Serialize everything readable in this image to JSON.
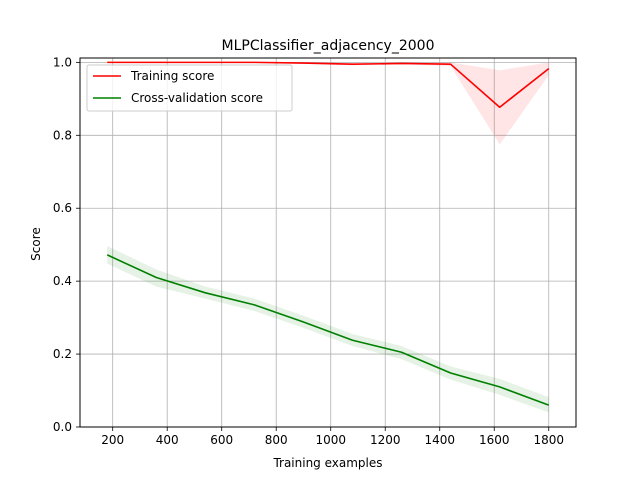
{
  "chart_data": {
    "type": "line",
    "title": "MLPClassifier_adjacency_2000",
    "xlabel": "Training examples",
    "ylabel": "Score",
    "xlim": [
      80,
      1900
    ],
    "ylim": [
      0.0,
      1.0
    ],
    "grid": true,
    "legend_position": "top-left",
    "x_ticks": [
      {
        "value": 200,
        "label": "200"
      },
      {
        "value": 400,
        "label": "400"
      },
      {
        "value": 600,
        "label": "600"
      },
      {
        "value": 800,
        "label": "800"
      },
      {
        "value": 1000,
        "label": "1000"
      },
      {
        "value": 1200,
        "label": "1200"
      },
      {
        "value": 1400,
        "label": "1400"
      },
      {
        "value": 1600,
        "label": "1600"
      },
      {
        "value": 1800,
        "label": "1800"
      }
    ],
    "y_ticks": [
      {
        "value": 0.0,
        "label": "0.0"
      },
      {
        "value": 0.2,
        "label": "0.2"
      },
      {
        "value": 0.4,
        "label": "0.4"
      },
      {
        "value": 0.6,
        "label": "0.6"
      },
      {
        "value": 0.8,
        "label": "0.8"
      },
      {
        "value": 1.0,
        "label": "1.0"
      }
    ],
    "x": [
      180,
      360,
      540,
      720,
      900,
      1080,
      1260,
      1440,
      1620,
      1800
    ],
    "series": [
      {
        "name": "Training score",
        "color": "#ff0000",
        "band_color": "#ff0000",
        "values": [
          1.0,
          1.0,
          1.0,
          1.0,
          0.998,
          0.995,
          0.997,
          0.995,
          0.877,
          0.983
        ],
        "band_lower": [
          1.0,
          1.0,
          1.0,
          1.0,
          0.996,
          0.992,
          0.995,
          0.99,
          0.775,
          0.965
        ],
        "band_upper": [
          1.0,
          1.0,
          1.0,
          1.0,
          1.0,
          0.998,
          0.999,
          1.0,
          0.978,
          1.0
        ]
      },
      {
        "name": "Cross-validation score",
        "color": "#008000",
        "band_color": "#008000",
        "values": [
          0.472,
          0.41,
          0.368,
          0.335,
          0.288,
          0.238,
          0.205,
          0.148,
          0.11,
          0.06
        ],
        "band_lower": [
          0.448,
          0.385,
          0.352,
          0.318,
          0.272,
          0.222,
          0.186,
          0.13,
          0.088,
          0.04
        ],
        "band_upper": [
          0.496,
          0.432,
          0.385,
          0.352,
          0.305,
          0.255,
          0.222,
          0.166,
          0.132,
          0.082
        ]
      }
    ]
  }
}
